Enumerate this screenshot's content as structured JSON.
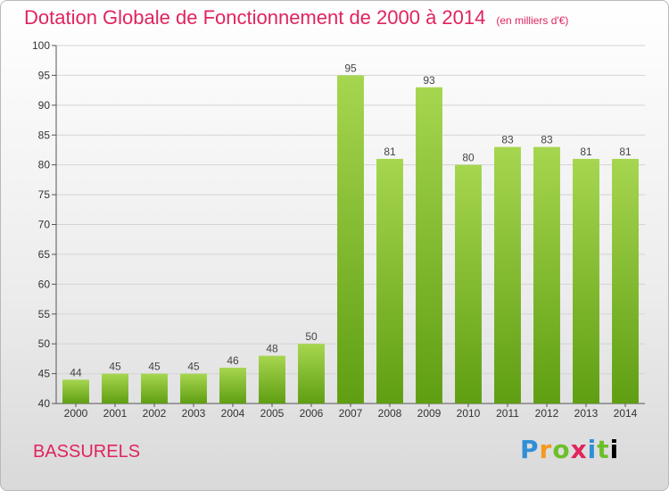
{
  "header": {
    "title": "Dotation Globale de Fonctionnement de 2000 à 2014",
    "unit": "(en milliers d'€)"
  },
  "footer": {
    "commune": "BASSURELS",
    "logo_letters": [
      "P",
      "r",
      "o",
      "x",
      "i",
      "t",
      "i"
    ]
  },
  "colors": {
    "bar_light": "#a6d64f",
    "bar_dark": "#5f9e12",
    "title": "#e0245e",
    "grid": "#d4d4d4"
  },
  "chart_data": {
    "type": "bar",
    "title": "Dotation Globale de Fonctionnement de 2000 à 2014",
    "categories": [
      "2000",
      "2001",
      "2002",
      "2003",
      "2004",
      "2005",
      "2006",
      "2007",
      "2008",
      "2009",
      "2010",
      "2011",
      "2012",
      "2013",
      "2014"
    ],
    "values": [
      44,
      45,
      45,
      45,
      46,
      48,
      50,
      95,
      81,
      93,
      80,
      83,
      83,
      81,
      81
    ],
    "ylim": [
      40,
      100
    ],
    "yticks": [
      40,
      45,
      50,
      55,
      60,
      65,
      70,
      75,
      80,
      85,
      90,
      95,
      100
    ],
    "grid": true,
    "data_labels": true
  }
}
